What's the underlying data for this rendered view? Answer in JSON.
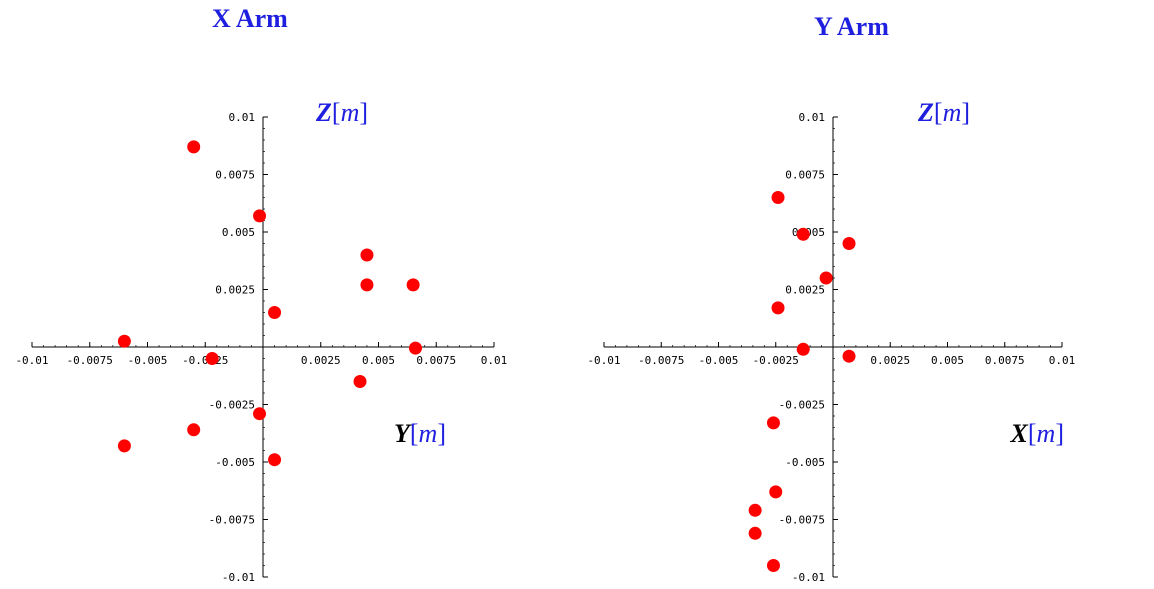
{
  "colors": {
    "title": "#1f1fe0",
    "bracket": "#1f1fe0",
    "axis_var": "#000000",
    "axis_unit": "#1f1fe0",
    "point": "#ff0000",
    "axis": "#000000"
  },
  "chart_data": [
    {
      "type": "scatter",
      "title": "X Arm",
      "xlabel": {
        "var": "Y",
        "open": "[",
        "unit": "m",
        "close": "]"
      },
      "ylabel": {
        "var": "Z",
        "open": "[",
        "unit": "m",
        "close": "]"
      },
      "xlim": [
        -0.01,
        0.01
      ],
      "ylim": [
        -0.01,
        0.01
      ],
      "xticks": [
        -0.01,
        -0.0075,
        -0.005,
        -0.0025,
        0.0025,
        0.005,
        0.0075,
        0.01
      ],
      "xtick_labels": [
        "-0.01",
        "-0.0075",
        "-0.005",
        "-0.0025",
        "0.0025",
        "0.005",
        "0.0075",
        "0.01"
      ],
      "yticks": [
        0.01,
        0.0075,
        0.005,
        0.0025,
        -0.0025,
        -0.005,
        -0.0075,
        -0.01
      ],
      "ytick_labels": [
        "0.01",
        "0.0075",
        "0.005",
        "0.0025",
        "-0.0025",
        "-0.005",
        "-0.0075",
        "-0.01"
      ],
      "points": [
        {
          "x": -0.003,
          "y": 0.0087
        },
        {
          "x": -0.00015,
          "y": 0.0057
        },
        {
          "x": 0.0045,
          "y": 0.004
        },
        {
          "x": 0.0045,
          "y": 0.0027
        },
        {
          "x": 0.0065,
          "y": 0.0027
        },
        {
          "x": 0.0005,
          "y": 0.0015
        },
        {
          "x": -0.006,
          "y": 0.00025
        },
        {
          "x": -0.0022,
          "y": -0.0005
        },
        {
          "x": 0.0066,
          "y": -5e-05
        },
        {
          "x": 0.0042,
          "y": -0.0015
        },
        {
          "x": -0.00015,
          "y": -0.0029
        },
        {
          "x": -0.003,
          "y": -0.0036
        },
        {
          "x": -0.006,
          "y": -0.0043
        },
        {
          "x": 0.0005,
          "y": -0.0049
        }
      ]
    },
    {
      "type": "scatter",
      "title": "Y Arm",
      "xlabel": {
        "var": "X",
        "open": "[",
        "unit": "m",
        "close": "]"
      },
      "ylabel": {
        "var": "Z",
        "open": "[",
        "unit": "m",
        "close": "]"
      },
      "xlim": [
        -0.01,
        0.01
      ],
      "ylim": [
        -0.01,
        0.01
      ],
      "xticks": [
        -0.01,
        -0.0075,
        -0.005,
        -0.0025,
        0.0025,
        0.005,
        0.0075,
        0.01
      ],
      "xtick_labels": [
        "-0.01",
        "-0.0075",
        "-0.005",
        "-0.0025",
        "0.0025",
        "0.005",
        "0.0075",
        "0.01"
      ],
      "yticks": [
        0.01,
        0.0075,
        0.005,
        0.0025,
        -0.0025,
        -0.005,
        -0.0075,
        -0.01
      ],
      "ytick_labels": [
        "0.01",
        "0.0075",
        "0.005",
        "0.0025",
        "-0.0025",
        "-0.005",
        "-0.0075",
        "-0.01"
      ],
      "points": [
        {
          "x": -0.0024,
          "y": 0.0065
        },
        {
          "x": -0.0013,
          "y": 0.0049
        },
        {
          "x": 0.0007,
          "y": 0.0045
        },
        {
          "x": -0.0003,
          "y": 0.003
        },
        {
          "x": -0.0024,
          "y": 0.0017
        },
        {
          "x": -0.0013,
          "y": -0.0001
        },
        {
          "x": 0.0007,
          "y": -0.0004
        },
        {
          "x": -0.0026,
          "y": -0.0033
        },
        {
          "x": -0.0025,
          "y": -0.0063
        },
        {
          "x": -0.0034,
          "y": -0.0071
        },
        {
          "x": -0.0034,
          "y": -0.0081
        },
        {
          "x": -0.0026,
          "y": -0.0095
        }
      ]
    }
  ]
}
